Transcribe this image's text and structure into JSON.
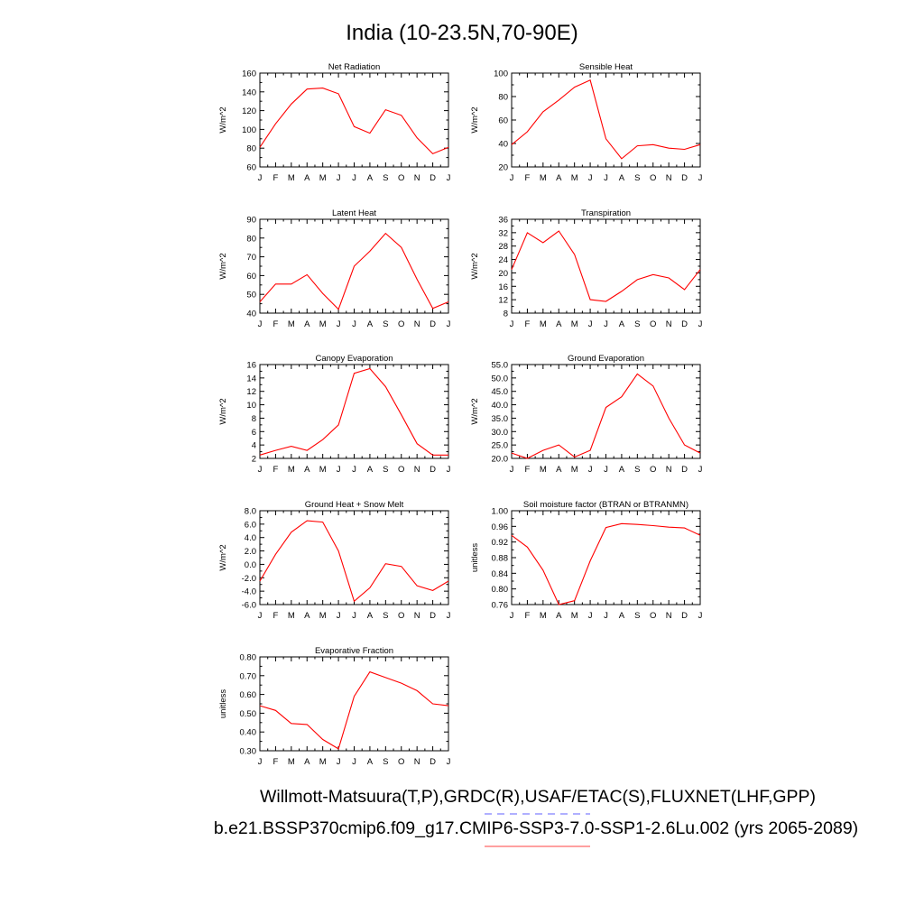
{
  "figure": {
    "title": "India (10-23.5N,70-90E)",
    "footer_line1": "Willmott-Matsuura(T,P),GRDC(R),USAF/ETAC(S),FLUXNET(LHF,GPP)",
    "footer_line2": "b.e21.BSSP370cmip6.f09_g17.CMIP6-SSP3-7.0-SSP1-2.6Lu.002 (yrs 2065-2089)",
    "line_color": "#ff0000",
    "legend_blue": "#8080ff",
    "legend_red": "#ff8080"
  },
  "chart_data": [
    {
      "type": "line",
      "title": "Net Radiation",
      "ylabel": "W/m^2",
      "categories": [
        "J",
        "F",
        "M",
        "A",
        "M",
        "J",
        "J",
        "A",
        "S",
        "O",
        "N",
        "D",
        "J"
      ],
      "yticks": [
        "60",
        "80",
        "100",
        "120",
        "140",
        "160"
      ],
      "ylim": [
        60,
        160
      ],
      "values": [
        81,
        106,
        127,
        143,
        144,
        138,
        103,
        96,
        121,
        115,
        91,
        74,
        81
      ]
    },
    {
      "type": "line",
      "title": "Sensible Heat",
      "ylabel": "W/m^2",
      "categories": [
        "J",
        "F",
        "M",
        "A",
        "M",
        "J",
        "J",
        "A",
        "S",
        "O",
        "N",
        "D",
        "J"
      ],
      "yticks": [
        "20",
        "40",
        "60",
        "80",
        "100"
      ],
      "ylim": [
        20,
        100
      ],
      "values": [
        39,
        50,
        67,
        77,
        88,
        94,
        44,
        27,
        38,
        39,
        36,
        35,
        39
      ]
    },
    {
      "type": "line",
      "title": "Latent Heat",
      "ylabel": "W/m^2",
      "categories": [
        "J",
        "F",
        "M",
        "A",
        "M",
        "J",
        "J",
        "A",
        "S",
        "O",
        "N",
        "D",
        "J"
      ],
      "yticks": [
        "40",
        "50",
        "60",
        "70",
        "80",
        "90"
      ],
      "ylim": [
        40,
        90
      ],
      "values": [
        46,
        55.5,
        55.5,
        60.5,
        50.5,
        42,
        65,
        73,
        82.5,
        75,
        58,
        42.5,
        46
      ]
    },
    {
      "type": "line",
      "title": "Transpiration",
      "ylabel": "W/m^2",
      "categories": [
        "J",
        "F",
        "M",
        "A",
        "M",
        "J",
        "J",
        "A",
        "S",
        "O",
        "N",
        "D",
        "J"
      ],
      "yticks": [
        "8",
        "12",
        "16",
        "20",
        "24",
        "28",
        "32",
        "36"
      ],
      "ylim": [
        8,
        36
      ],
      "values": [
        21,
        32,
        29,
        32.5,
        25.5,
        12,
        11.5,
        14.5,
        18,
        19.5,
        18.5,
        15,
        21
      ]
    },
    {
      "type": "line",
      "title": "Canopy Evaporation",
      "ylabel": "W/m^2",
      "categories": [
        "J",
        "F",
        "M",
        "A",
        "M",
        "J",
        "J",
        "A",
        "S",
        "O",
        "N",
        "D",
        "J"
      ],
      "yticks": [
        "2",
        "4",
        "6",
        "8",
        "10",
        "12",
        "14",
        "16"
      ],
      "ylim": [
        2,
        16
      ],
      "values": [
        2.5,
        3.2,
        3.8,
        3.2,
        4.8,
        7,
        14.7,
        15.4,
        12.7,
        8.5,
        4.2,
        2.5,
        2.5
      ]
    },
    {
      "type": "line",
      "title": "Ground Evaporation",
      "ylabel": "W/m^2",
      "categories": [
        "J",
        "F",
        "M",
        "A",
        "M",
        "J",
        "J",
        "A",
        "S",
        "O",
        "N",
        "D",
        "J"
      ],
      "yticks": [
        "20.0",
        "25.0",
        "30.0",
        "35.0",
        "40.0",
        "45.0",
        "50.0",
        "55.0"
      ],
      "ylim": [
        20,
        55
      ],
      "values": [
        22,
        20,
        23,
        25,
        20.5,
        23,
        39,
        43,
        51.5,
        47,
        35,
        25,
        22
      ]
    },
    {
      "type": "line",
      "title": "Ground Heat + Snow Melt",
      "ylabel": "W/m^2",
      "categories": [
        "J",
        "F",
        "M",
        "A",
        "M",
        "J",
        "J",
        "A",
        "S",
        "O",
        "N",
        "D",
        "J"
      ],
      "yticks": [
        "-6.0",
        "-4.0",
        "-2.0",
        "0.0",
        "2.0",
        "4.0",
        "6.0",
        "8.0"
      ],
      "ylim": [
        -6,
        8
      ],
      "values": [
        -2.5,
        1.5,
        4.8,
        6.5,
        6.3,
        2,
        -5.5,
        -3.5,
        0.1,
        -0.3,
        -3.2,
        -3.9,
        -2.5
      ]
    },
    {
      "type": "line",
      "title": "Soil moisture factor (BTRAN or BTRANMN)",
      "ylabel": "unitless",
      "categories": [
        "J",
        "F",
        "M",
        "A",
        "M",
        "J",
        "J",
        "A",
        "S",
        "O",
        "N",
        "D",
        "J"
      ],
      "yticks": [
        "0.76",
        "0.80",
        "0.84",
        "0.88",
        "0.92",
        "0.96",
        "1.00"
      ],
      "ylim": [
        0.76,
        1.0
      ],
      "values": [
        0.937,
        0.907,
        0.848,
        0.76,
        0.77,
        0.872,
        0.957,
        0.967,
        0.965,
        0.962,
        0.958,
        0.956,
        0.937
      ]
    },
    {
      "type": "line",
      "title": "Evaporative Fraction",
      "ylabel": "unitless",
      "categories": [
        "J",
        "F",
        "M",
        "A",
        "M",
        "J",
        "J",
        "A",
        "S",
        "O",
        "N",
        "D",
        "J"
      ],
      "yticks": [
        "0.30",
        "0.40",
        "0.50",
        "0.60",
        "0.70",
        "0.80"
      ],
      "ylim": [
        0.3,
        0.8
      ],
      "values": [
        0.54,
        0.515,
        0.445,
        0.44,
        0.36,
        0.31,
        0.59,
        0.72,
        0.69,
        0.66,
        0.62,
        0.55,
        0.54
      ]
    }
  ]
}
